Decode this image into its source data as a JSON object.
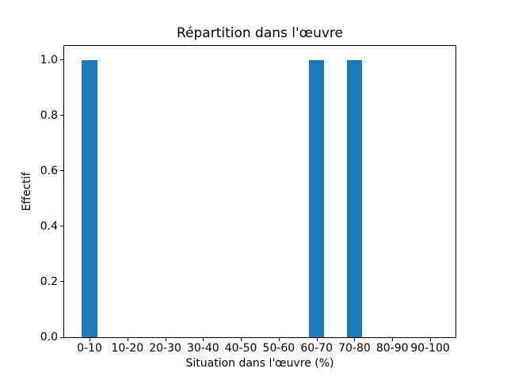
{
  "chart_data": {
    "type": "bar",
    "title": "Répartition dans l'œuvre",
    "xlabel": "Situation dans l'œuvre (%)",
    "ylabel": "Effectif",
    "categories": [
      "0-10",
      "10-20",
      "20-30",
      "30-40",
      "40-50",
      "50-60",
      "60-70",
      "70-80",
      "80-90",
      "90-100"
    ],
    "values": [
      1,
      0,
      0,
      0,
      0,
      0,
      1,
      1,
      0,
      0
    ],
    "yticks": [
      {
        "value": 0.0,
        "label": "0.0"
      },
      {
        "value": 0.2,
        "label": "0.2"
      },
      {
        "value": 0.4,
        "label": "0.4"
      },
      {
        "value": 0.6,
        "label": "0.6"
      },
      {
        "value": 0.8,
        "label": "0.8"
      },
      {
        "value": 1.0,
        "label": "1.0"
      }
    ],
    "ylim": [
      0,
      1.05
    ],
    "bar_color": "#1f77b4",
    "bar_width_fraction": 0.4,
    "x_pad_units": 0.67,
    "grid": false,
    "legend": "none",
    "background_color": "#ffffff",
    "axis_color": "#000000"
  }
}
